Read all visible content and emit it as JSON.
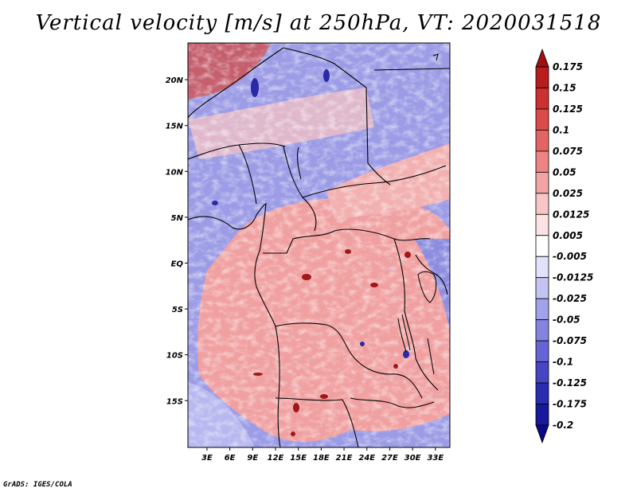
{
  "title": "Vertical velocity [m/s] at 250hPa, VT: 2020031518",
  "credit": "GrADS: IGES/COLA",
  "map": {
    "lat_labels": [
      {
        "label": "20N",
        "lat": 20
      },
      {
        "label": "15N",
        "lat": 15
      },
      {
        "label": "10N",
        "lat": 10
      },
      {
        "label": "5N",
        "lat": 5
      },
      {
        "label": "EQ",
        "lat": 0
      },
      {
        "label": "5S",
        "lat": -5
      },
      {
        "label": "10S",
        "lat": -10
      },
      {
        "label": "15S",
        "lat": -15
      }
    ],
    "lon_labels": [
      {
        "label": "3E",
        "lon": 3
      },
      {
        "label": "6E",
        "lon": 6
      },
      {
        "label": "9E",
        "lon": 9
      },
      {
        "label": "12E",
        "lon": 12
      },
      {
        "label": "15E",
        "lon": 15
      },
      {
        "label": "18E",
        "lon": 18
      },
      {
        "label": "21E",
        "lon": 21
      },
      {
        "label": "24E",
        "lon": 24
      },
      {
        "label": "27E",
        "lon": 27
      },
      {
        "label": "30E",
        "lon": 30
      },
      {
        "label": "33E",
        "lon": 33
      }
    ],
    "lon_range": [
      0.5,
      34.9
    ],
    "lat_range": [
      -20.1,
      24.0
    ]
  },
  "colorbar": {
    "levels": [
      "0.175",
      "0.15",
      "0.125",
      "0.1",
      "0.075",
      "0.05",
      "0.025",
      "0.0125",
      "0.005",
      "-0.005",
      "-0.0125",
      "-0.025",
      "-0.05",
      "-0.075",
      "-0.1",
      "-0.125",
      "-0.175",
      "-0.2"
    ],
    "colors": [
      "#a01010",
      "#b81c1c",
      "#cc3030",
      "#dc4a4a",
      "#e46464",
      "#ec8484",
      "#f2a4a4",
      "#f8c6c6",
      "#fce2e2",
      "#ffffff",
      "#e2e2fa",
      "#c4c4f2",
      "#a2a2ea",
      "#8484e0",
      "#6464d4",
      "#4646c4",
      "#2c2cb0",
      "#18189c",
      "#0a0a86"
    ],
    "top_color": "#a01010",
    "bottom_color": "#0a0a86"
  }
}
